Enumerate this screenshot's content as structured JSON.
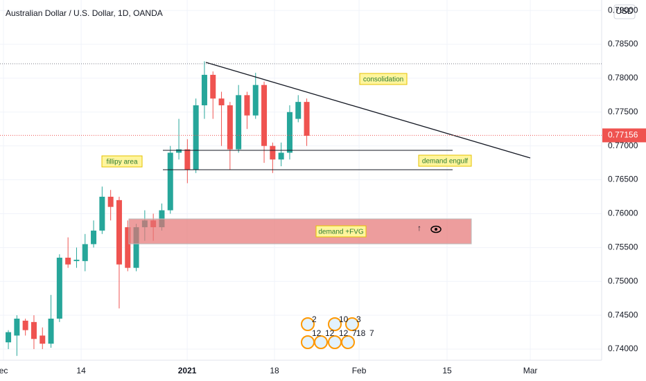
{
  "chart_data": {
    "type": "candlestick",
    "title": "Australian Dollar / U.S. Dollar, 1D, OANDA",
    "currency": "USD",
    "x": [
      0,
      1,
      2,
      3,
      4,
      5,
      6,
      7,
      8,
      9,
      10,
      11,
      12,
      13,
      14,
      15,
      16,
      17,
      18,
      19,
      20,
      21,
      22,
      23,
      24,
      25,
      26,
      27,
      28,
      29,
      30,
      31,
      32,
      33,
      34,
      35
    ],
    "open": [
      0.741,
      0.742,
      0.7442,
      0.744,
      0.742,
      0.7408,
      0.7445,
      0.7535,
      0.753,
      0.753,
      0.7555,
      0.7575,
      0.7625,
      0.762,
      0.758,
      0.752,
      0.758,
      0.759,
      0.758,
      0.7605,
      0.769,
      0.7695,
      0.7665,
      0.776,
      0.7805,
      0.777,
      0.776,
      0.7695,
      0.7775,
      0.7745,
      0.779,
      0.77,
      0.768,
      0.769,
      0.774,
      0.7765
    ],
    "high": [
      0.7428,
      0.745,
      0.7445,
      0.745,
      0.7432,
      0.748,
      0.754,
      0.7565,
      0.755,
      0.757,
      0.759,
      0.764,
      0.7635,
      0.7625,
      0.759,
      0.7585,
      0.7605,
      0.76,
      0.7615,
      0.77,
      0.774,
      0.771,
      0.777,
      0.7825,
      0.781,
      0.778,
      0.7765,
      0.779,
      0.778,
      0.7808,
      0.7795,
      0.7705,
      0.7705,
      0.776,
      0.7775,
      0.777
    ],
    "low": [
      0.74,
      0.739,
      0.742,
      0.74,
      0.74,
      0.7402,
      0.744,
      0.752,
      0.752,
      0.7515,
      0.755,
      0.757,
      0.759,
      0.746,
      0.7515,
      0.7515,
      0.756,
      0.756,
      0.7575,
      0.76,
      0.768,
      0.7645,
      0.766,
      0.774,
      0.774,
      0.77,
      0.7665,
      0.769,
      0.7725,
      0.774,
      0.7675,
      0.766,
      0.767,
      0.768,
      0.7735,
      0.77
    ],
    "close": [
      0.7425,
      0.7445,
      0.7428,
      0.7415,
      0.7408,
      0.7445,
      0.7535,
      0.7525,
      0.7532,
      0.7555,
      0.7575,
      0.7625,
      0.761,
      0.7525,
      0.752,
      0.758,
      0.759,
      0.758,
      0.7605,
      0.769,
      0.7695,
      0.7665,
      0.776,
      0.7805,
      0.777,
      0.776,
      0.7695,
      0.7775,
      0.7745,
      0.779,
      0.77,
      0.768,
      0.769,
      0.775,
      0.7765,
      0.7715
    ],
    "up_color": "#26a69a",
    "down_color": "#ef5350",
    "xlim": [
      -0.98,
      69.59
    ],
    "xticks": [
      {
        "value": -0.57,
        "label": "ec"
      },
      {
        "value": 8.54,
        "label": "14"
      },
      {
        "value": 20.98,
        "label": "2021"
      },
      {
        "value": 31.22,
        "label": "18"
      },
      {
        "value": 41.14,
        "label": "Feb"
      },
      {
        "value": 51.46,
        "label": "15"
      },
      {
        "value": 61.22,
        "label": "Mar"
      }
    ],
    "ylim": [
      0.73836,
      0.79155
    ],
    "yticks": [
      {
        "value": 0.74,
        "label": "0.74000"
      },
      {
        "value": 0.745,
        "label": "0.74500"
      },
      {
        "value": 0.75,
        "label": "0.75000"
      },
      {
        "value": 0.755,
        "label": "0.75500"
      },
      {
        "value": 0.76,
        "label": "0.76000"
      },
      {
        "value": 0.765,
        "label": "0.76500"
      },
      {
        "value": 0.77,
        "label": "0.77000"
      },
      {
        "value": 0.775,
        "label": "0.77500"
      },
      {
        "value": 0.78,
        "label": "0.78000"
      },
      {
        "value": 0.785,
        "label": "0.78500"
      },
      {
        "value": 0.79,
        "label": "0.79000"
      }
    ],
    "last_price": {
      "value": 0.77156,
      "label": "0.77156"
    },
    "annotations": [
      "consolidation",
      "fillipy area",
      "demand engulf",
      "demand +FVG"
    ],
    "event_counts": [
      "2",
      "10",
      "3",
      "12",
      "12",
      "12",
      "7",
      "18",
      "7"
    ]
  }
}
